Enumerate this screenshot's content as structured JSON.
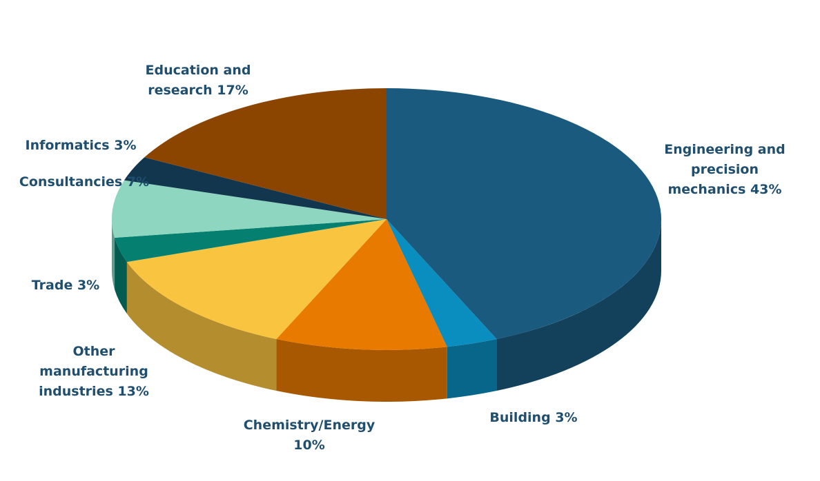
{
  "chart_data": {
    "type": "pie",
    "categories": [
      "Engineering and precision mechanics",
      "Building",
      "Chemistry/Energy",
      "Other manufacturing industries",
      "Trade",
      "Consultancies",
      "Informatics",
      "Education and research"
    ],
    "values": [
      43,
      3,
      10,
      13,
      3,
      7,
      3,
      17
    ],
    "value_labels": [
      "43%",
      "3%",
      "10%",
      "13%",
      "3%",
      "7%",
      "3%",
      "17%"
    ],
    "colors": [
      "#1a5a7e",
      "#0a8dbf",
      "#e87a00",
      "#f9c440",
      "#058070",
      "#8ed6bf",
      "#12364e",
      "#8b4500"
    ]
  }
}
